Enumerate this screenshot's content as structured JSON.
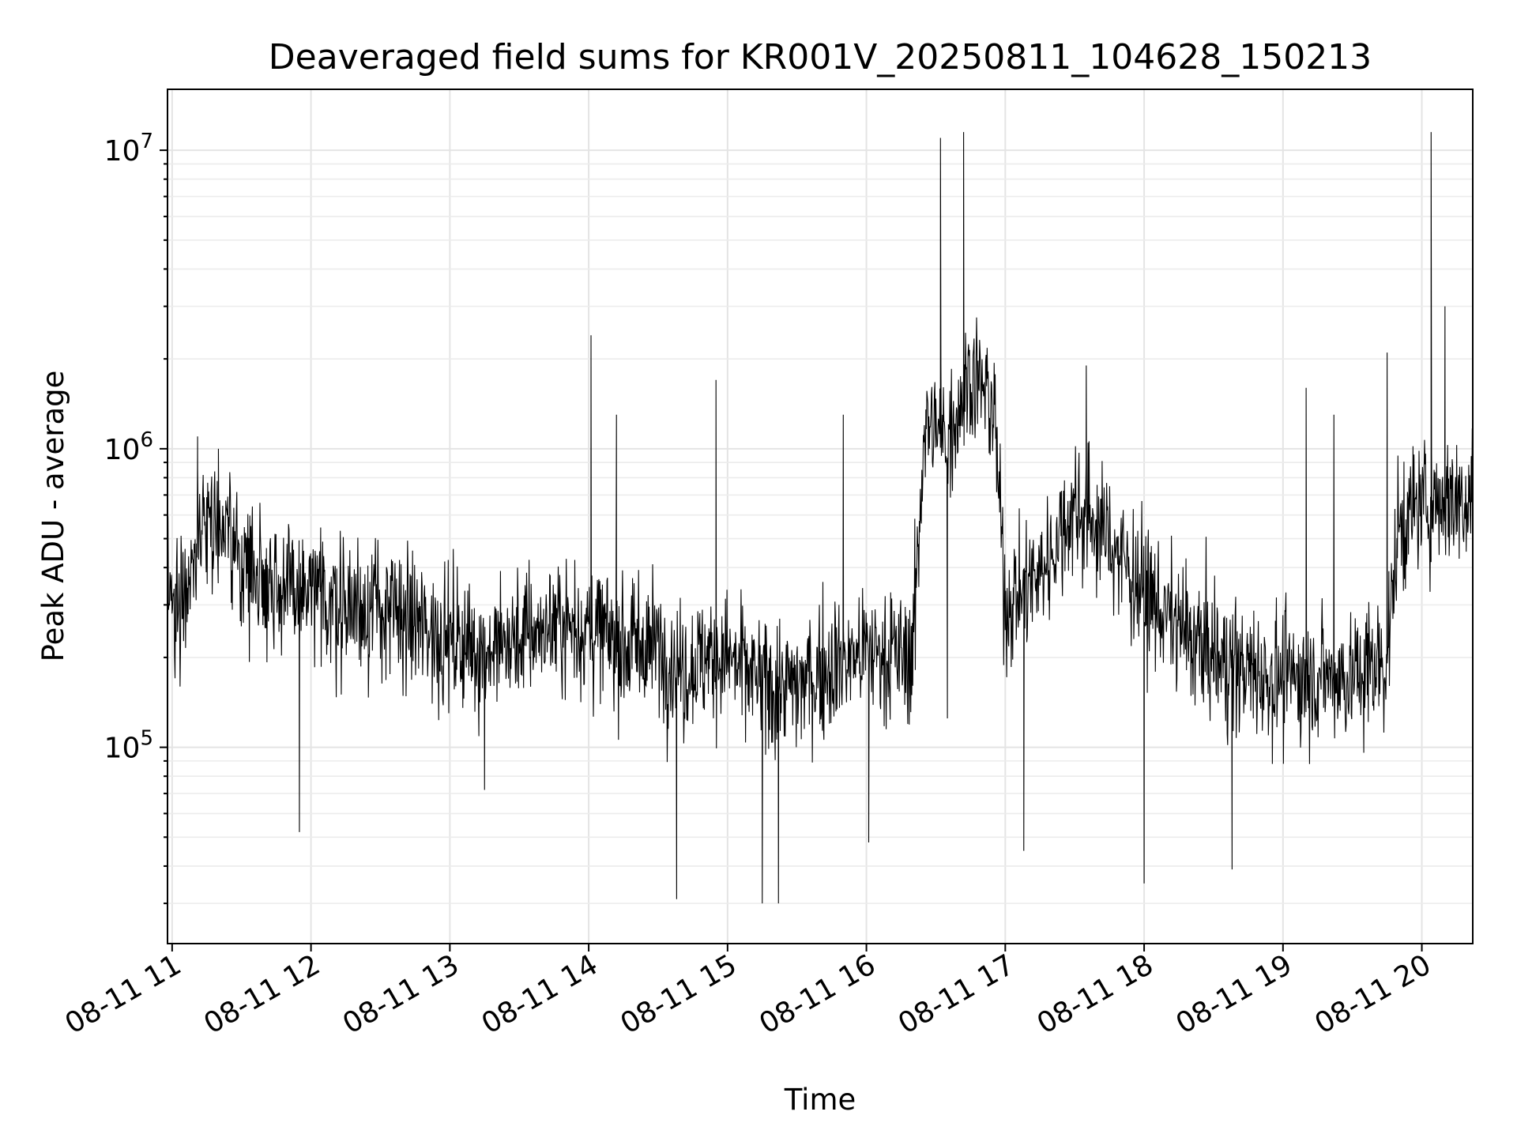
{
  "chart_data": {
    "type": "line",
    "title": "Deaveraged field sums for KR001V_20250811_104628_150213",
    "xlabel": "Time",
    "ylabel": "Peak ADU - average",
    "x_range": [
      "2025-08-11T10:58:00",
      "2025-08-11T20:22:00"
    ],
    "ylim": [
      22000,
      16000000
    ],
    "y_scale": "log",
    "grid": true,
    "legend": "none",
    "x_ticks": [
      {
        "value": "2025-08-11T11:00:00",
        "label": "08-11 11"
      },
      {
        "value": "2025-08-11T12:00:00",
        "label": "08-11 12"
      },
      {
        "value": "2025-08-11T13:00:00",
        "label": "08-11 13"
      },
      {
        "value": "2025-08-11T14:00:00",
        "label": "08-11 14"
      },
      {
        "value": "2025-08-11T15:00:00",
        "label": "08-11 15"
      },
      {
        "value": "2025-08-11T16:00:00",
        "label": "08-11 16"
      },
      {
        "value": "2025-08-11T17:00:00",
        "label": "08-11 17"
      },
      {
        "value": "2025-08-11T18:00:00",
        "label": "08-11 18"
      },
      {
        "value": "2025-08-11T19:00:00",
        "label": "08-11 19"
      },
      {
        "value": "2025-08-11T20:00:00",
        "label": "08-11 20"
      }
    ],
    "y_ticks": [
      {
        "value": 100000,
        "base": "10",
        "exp": "5"
      },
      {
        "value": 1000000,
        "base": "10",
        "exp": "6"
      },
      {
        "value": 10000000,
        "base": "10",
        "exp": "7"
      }
    ],
    "line_color": "#000000",
    "series": [
      {
        "x": [
          "2025-08-11T10:58:00",
          "2025-08-11T11:05:00",
          "2025-08-11T11:10:00",
          "2025-08-11T11:15:00",
          "2025-08-11T11:20:00",
          "2025-08-11T11:30:00",
          "2025-08-11T11:40:00",
          "2025-08-11T11:50:00",
          "2025-08-11T12:00:00",
          "2025-08-11T12:15:00",
          "2025-08-11T12:30:00",
          "2025-08-11T12:45:00",
          "2025-08-11T13:00:00",
          "2025-08-11T13:15:00",
          "2025-08-11T13:30:00",
          "2025-08-11T13:45:00",
          "2025-08-11T14:00:00",
          "2025-08-11T14:15:00",
          "2025-08-11T14:30:00",
          "2025-08-11T14:40:00",
          "2025-08-11T14:50:00",
          "2025-08-11T15:00:00",
          "2025-08-11T15:15:00",
          "2025-08-11T15:30:00",
          "2025-08-11T15:45:00",
          "2025-08-11T16:00:00",
          "2025-08-11T16:20:00",
          "2025-08-11T16:25:00",
          "2025-08-11T16:35:00",
          "2025-08-11T16:45:00",
          "2025-08-11T16:55:00",
          "2025-08-11T17:00:00",
          "2025-08-11T17:15:00",
          "2025-08-11T17:30:00",
          "2025-08-11T17:45:00",
          "2025-08-11T18:00:00",
          "2025-08-11T18:15:00",
          "2025-08-11T18:30:00",
          "2025-08-11T18:45:00",
          "2025-08-11T19:00:00",
          "2025-08-11T19:15:00",
          "2025-08-11T19:30:00",
          "2025-08-11T19:45:00",
          "2025-08-11T19:50:00",
          "2025-08-11T20:00:00",
          "2025-08-11T20:10:00",
          "2025-08-11T20:22:00"
        ],
        "y": [
          300000,
          330000,
          450000,
          650000,
          550000,
          420000,
          380000,
          330000,
          320000,
          300000,
          290000,
          260000,
          230000,
          210000,
          230000,
          260000,
          250000,
          220000,
          220000,
          180000,
          200000,
          200000,
          160000,
          160000,
          190000,
          210000,
          200000,
          1200000,
          1100000,
          1800000,
          1400000,
          300000,
          380000,
          650000,
          500000,
          330000,
          250000,
          200000,
          180000,
          170000,
          175000,
          170000,
          200000,
          550000,
          650000,
          680000,
          700000
        ]
      }
    ],
    "spikes": [
      {
        "x": "2025-08-11T11:11:00",
        "y": 1100000
      },
      {
        "x": "2025-08-11T11:20:00",
        "y": 1000000
      },
      {
        "x": "2025-08-11T11:55:00",
        "y": 52000
      },
      {
        "x": "2025-08-11T13:15:00",
        "y": 72000
      },
      {
        "x": "2025-08-11T14:01:00",
        "y": 2400000
      },
      {
        "x": "2025-08-11T14:12:00",
        "y": 1300000
      },
      {
        "x": "2025-08-11T14:38:00",
        "y": 31000
      },
      {
        "x": "2025-08-11T14:55:00",
        "y": 1700000
      },
      {
        "x": "2025-08-11T15:15:00",
        "y": 30000
      },
      {
        "x": "2025-08-11T15:22:00",
        "y": 30000
      },
      {
        "x": "2025-08-11T15:50:00",
        "y": 1300000
      },
      {
        "x": "2025-08-11T16:01:00",
        "y": 48000
      },
      {
        "x": "2025-08-11T16:32:00",
        "y": 11000000
      },
      {
        "x": "2025-08-11T16:35:00",
        "y": 125000
      },
      {
        "x": "2025-08-11T16:42:00",
        "y": 11500000
      },
      {
        "x": "2025-08-11T17:08:00",
        "y": 45000
      },
      {
        "x": "2025-08-11T17:35:00",
        "y": 1900000
      },
      {
        "x": "2025-08-11T18:00:00",
        "y": 35000
      },
      {
        "x": "2025-08-11T18:38:00",
        "y": 39000
      },
      {
        "x": "2025-08-11T19:10:00",
        "y": 1600000
      },
      {
        "x": "2025-08-11T19:22:00",
        "y": 1300000
      },
      {
        "x": "2025-08-11T19:45:00",
        "y": 2100000
      },
      {
        "x": "2025-08-11T20:04:00",
        "y": 11500000
      },
      {
        "x": "2025-08-11T20:10:00",
        "y": 3000000
      }
    ]
  }
}
